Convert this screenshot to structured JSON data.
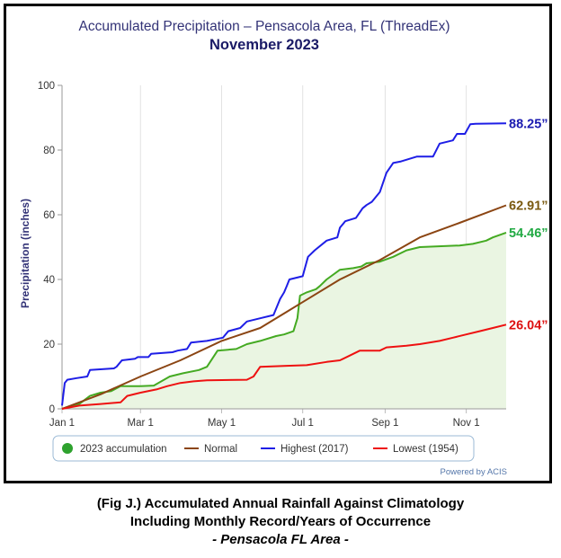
{
  "chart_data": {
    "type": "line",
    "title": "Accumulated Precipitation – Pensacola Area, FL (ThreadEx)",
    "subtitle": "November 2023",
    "xlabel": "",
    "ylabel": "Precipitation (inches)",
    "ylim": [
      0,
      100
    ],
    "yticks": [
      0,
      20,
      40,
      60,
      80,
      100
    ],
    "xlim_day_of_year": [
      1,
      335
    ],
    "xticks": [
      {
        "label": "Jan 1",
        "day": 1
      },
      {
        "label": "Mar 1",
        "day": 60
      },
      {
        "label": "May 1",
        "day": 121
      },
      {
        "label": "Jul 1",
        "day": 182
      },
      {
        "label": "Sep 1",
        "day": 244
      },
      {
        "label": "Nov 1",
        "day": 305
      }
    ],
    "grid": "vertical",
    "legend_position": "bottom",
    "credit": "Powered by ACIS",
    "series": [
      {
        "name": "2023 accumulation",
        "color": "#44aa22",
        "fill": "#eaf5e2",
        "end_label": "54.46”",
        "end_label_color": "#22aa44",
        "points": [
          [
            1,
            0
          ],
          [
            8,
            1
          ],
          [
            14,
            1.5
          ],
          [
            22,
            4
          ],
          [
            30,
            5
          ],
          [
            38,
            5.5
          ],
          [
            45,
            7
          ],
          [
            60,
            7
          ],
          [
            70,
            7.2
          ],
          [
            82,
            10
          ],
          [
            92,
            11
          ],
          [
            104,
            12
          ],
          [
            110,
            13
          ],
          [
            118,
            18
          ],
          [
            132,
            18.5
          ],
          [
            140,
            20
          ],
          [
            150,
            21
          ],
          [
            162,
            22.5
          ],
          [
            168,
            23
          ],
          [
            175,
            24
          ],
          [
            178,
            28
          ],
          [
            180,
            35
          ],
          [
            185,
            36
          ],
          [
            192,
            37
          ],
          [
            195,
            38
          ],
          [
            200,
            40
          ],
          [
            210,
            43
          ],
          [
            220,
            43.5
          ],
          [
            226,
            44
          ],
          [
            230,
            45
          ],
          [
            240,
            45.5
          ],
          [
            250,
            47
          ],
          [
            260,
            49
          ],
          [
            270,
            50
          ],
          [
            300,
            50.5
          ],
          [
            310,
            51
          ],
          [
            320,
            52
          ],
          [
            325,
            53
          ],
          [
            335,
            54.46
          ]
        ]
      },
      {
        "name": "Normal",
        "color": "#8b4513",
        "end_label": "62.91”",
        "end_label_color": "#7a5a10",
        "points": [
          [
            1,
            0
          ],
          [
            30,
            4.5
          ],
          [
            60,
            10
          ],
          [
            90,
            15
          ],
          [
            121,
            21
          ],
          [
            150,
            25
          ],
          [
            170,
            30
          ],
          [
            182,
            33
          ],
          [
            210,
            40
          ],
          [
            240,
            46
          ],
          [
            270,
            53
          ],
          [
            300,
            57.5
          ],
          [
            335,
            62.91
          ]
        ]
      },
      {
        "name": "Highest (2017)",
        "color": "#1e1ee6",
        "end_label": "88.25”",
        "end_label_color": "#1a1ab0",
        "points": [
          [
            1,
            1
          ],
          [
            3,
            8
          ],
          [
            5,
            9
          ],
          [
            12,
            9.5
          ],
          [
            20,
            10
          ],
          [
            22,
            12
          ],
          [
            40,
            12.5
          ],
          [
            42,
            13
          ],
          [
            46,
            15
          ],
          [
            56,
            15.5
          ],
          [
            58,
            16
          ],
          [
            66,
            16
          ],
          [
            68,
            17
          ],
          [
            84,
            17.5
          ],
          [
            88,
            18
          ],
          [
            95,
            18.5
          ],
          [
            98,
            20.5
          ],
          [
            110,
            21
          ],
          [
            122,
            22
          ],
          [
            126,
            24
          ],
          [
            135,
            25
          ],
          [
            140,
            27
          ],
          [
            150,
            28
          ],
          [
            160,
            29
          ],
          [
            165,
            34
          ],
          [
            168,
            36
          ],
          [
            170,
            38
          ],
          [
            172,
            40
          ],
          [
            182,
            41
          ],
          [
            186,
            47
          ],
          [
            191,
            49
          ],
          [
            200,
            52
          ],
          [
            208,
            53
          ],
          [
            210,
            56
          ],
          [
            214,
            58
          ],
          [
            222,
            59
          ],
          [
            227,
            62
          ],
          [
            230,
            63
          ],
          [
            234,
            64
          ],
          [
            240,
            67
          ],
          [
            245,
            73
          ],
          [
            250,
            76
          ],
          [
            256,
            76.5
          ],
          [
            268,
            78
          ],
          [
            280,
            78
          ],
          [
            285,
            82
          ],
          [
            295,
            83
          ],
          [
            298,
            85
          ],
          [
            304,
            85
          ],
          [
            308,
            88
          ],
          [
            312,
            88.1
          ],
          [
            335,
            88.25
          ]
        ]
      },
      {
        "name": "Lowest (1954)",
        "color": "#ee1111",
        "end_label": "26.04”",
        "end_label_color": "#dd1111",
        "points": [
          [
            1,
            0
          ],
          [
            14,
            1
          ],
          [
            30,
            1.5
          ],
          [
            45,
            2
          ],
          [
            50,
            4
          ],
          [
            60,
            5
          ],
          [
            72,
            6
          ],
          [
            80,
            7
          ],
          [
            90,
            8
          ],
          [
            100,
            8.5
          ],
          [
            110,
            8.8
          ],
          [
            140,
            9
          ],
          [
            145,
            10
          ],
          [
            150,
            13
          ],
          [
            170,
            13.3
          ],
          [
            185,
            13.5
          ],
          [
            200,
            14.5
          ],
          [
            210,
            15
          ],
          [
            220,
            17
          ],
          [
            225,
            18
          ],
          [
            240,
            18
          ],
          [
            245,
            19
          ],
          [
            260,
            19.5
          ],
          [
            270,
            20
          ],
          [
            285,
            21
          ],
          [
            295,
            22
          ],
          [
            305,
            23
          ],
          [
            315,
            24
          ],
          [
            325,
            25
          ],
          [
            335,
            26.04
          ]
        ]
      }
    ]
  },
  "caption": {
    "line1": "(Fig J.) Accumulated Annual Rainfall Against  Climatology",
    "line2": "Including Monthly Record/Years of Occurrence",
    "line3": "- Pensacola FL Area -"
  }
}
